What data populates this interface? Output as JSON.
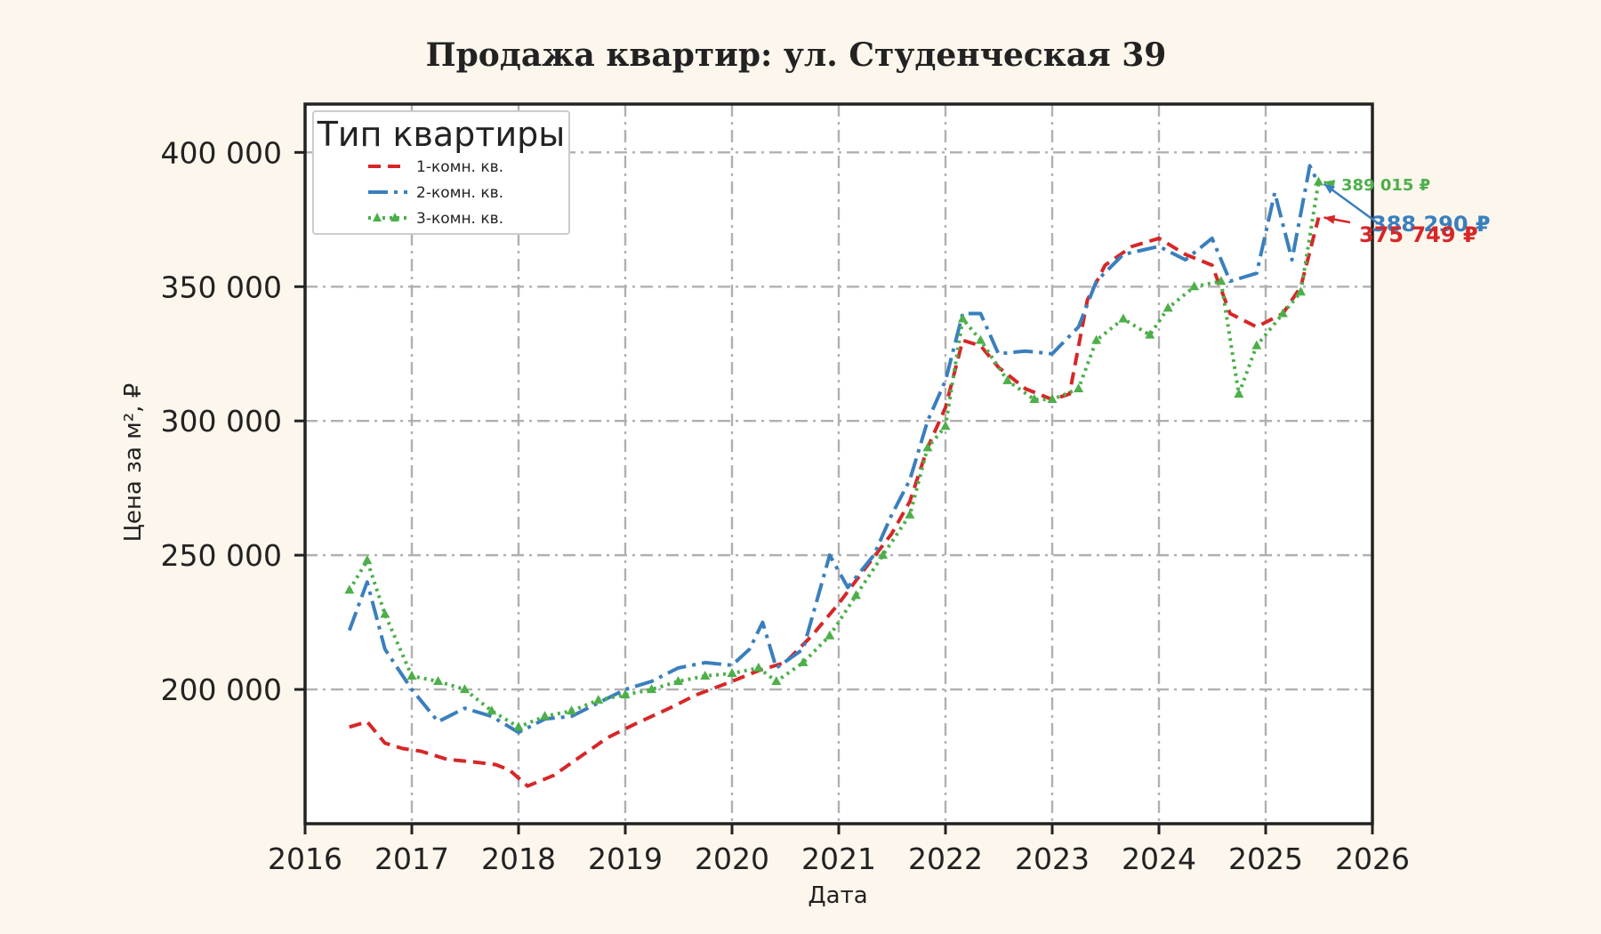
{
  "chart_data": {
    "type": "line",
    "title": "Продажа квартир: ул. Студенческая 39",
    "xlabel": "Дата",
    "ylabel": "Цена за м², ₽",
    "xlim": [
      "2016-01-01",
      "2026-01-01"
    ],
    "ylim": [
      150000,
      418000
    ],
    "x_ticks": [
      "2016",
      "2017",
      "2018",
      "2019",
      "2020",
      "2021",
      "2022",
      "2023",
      "2024",
      "2025",
      "2026"
    ],
    "y_ticks": [
      200000,
      250000,
      300000,
      350000,
      400000
    ],
    "y_tick_labels": [
      "200 000",
      "250 000",
      "300 000",
      "350 000",
      "400 000"
    ],
    "grid": true,
    "legend": {
      "title": "Тип квартиры",
      "placement": "top-left"
    },
    "series": [
      {
        "name": "1-комн. кв.",
        "color": "#d62728",
        "style": "dashed",
        "points": [
          [
            "2016-06-01",
            186000
          ],
          [
            "2016-08-01",
            188000
          ],
          [
            "2016-10-01",
            180000
          ],
          [
            "2016-12-01",
            178000
          ],
          [
            "2017-02-01",
            177000
          ],
          [
            "2017-05-01",
            174000
          ],
          [
            "2017-08-01",
            173000
          ],
          [
            "2017-10-15",
            172000
          ],
          [
            "2017-12-01",
            170000
          ],
          [
            "2018-02-01",
            164000
          ],
          [
            "2018-05-01",
            168000
          ],
          [
            "2018-08-01",
            175000
          ],
          [
            "2018-11-01",
            182000
          ],
          [
            "2019-02-01",
            187000
          ],
          [
            "2019-06-01",
            193000
          ],
          [
            "2019-09-01",
            198000
          ],
          [
            "2020-01-01",
            203000
          ],
          [
            "2020-04-01",
            207000
          ],
          [
            "2020-07-01",
            210000
          ],
          [
            "2020-10-01",
            220000
          ],
          [
            "2021-01-01",
            232000
          ],
          [
            "2021-04-01",
            245000
          ],
          [
            "2021-07-01",
            258000
          ],
          [
            "2021-09-01",
            270000
          ],
          [
            "2021-11-01",
            290000
          ],
          [
            "2022-01-01",
            305000
          ],
          [
            "2022-03-01",
            330000
          ],
          [
            "2022-05-01",
            328000
          ],
          [
            "2022-07-01",
            320000
          ],
          [
            "2022-10-01",
            312000
          ],
          [
            "2023-01-01",
            308000
          ],
          [
            "2023-03-01",
            310000
          ],
          [
            "2023-05-01",
            345000
          ],
          [
            "2023-07-01",
            358000
          ],
          [
            "2023-10-01",
            365000
          ],
          [
            "2024-01-01",
            368000
          ],
          [
            "2024-04-01",
            362000
          ],
          [
            "2024-07-01",
            358000
          ],
          [
            "2024-09-01",
            340000
          ],
          [
            "2024-12-01",
            335000
          ],
          [
            "2025-03-01",
            340000
          ],
          [
            "2025-05-01",
            350000
          ],
          [
            "2025-07-01",
            375749
          ]
        ]
      },
      {
        "name": "2-комн. кв.",
        "color": "#3a7fbd",
        "style": "dashdot",
        "points": [
          [
            "2016-06-01",
            222000
          ],
          [
            "2016-08-01",
            240000
          ],
          [
            "2016-10-01",
            215000
          ],
          [
            "2017-01-01",
            200000
          ],
          [
            "2017-04-01",
            188000
          ],
          [
            "2017-07-01",
            193000
          ],
          [
            "2017-10-01",
            190000
          ],
          [
            "2018-01-01",
            184000
          ],
          [
            "2018-04-01",
            189000
          ],
          [
            "2018-07-01",
            190000
          ],
          [
            "2018-10-01",
            195000
          ],
          [
            "2019-01-01",
            200000
          ],
          [
            "2019-04-01",
            203000
          ],
          [
            "2019-07-01",
            208000
          ],
          [
            "2019-10-01",
            210000
          ],
          [
            "2020-01-01",
            209000
          ],
          [
            "2020-03-01",
            215000
          ],
          [
            "2020-04-15",
            225000
          ],
          [
            "2020-06-01",
            208000
          ],
          [
            "2020-09-01",
            215000
          ],
          [
            "2020-12-01",
            250000
          ],
          [
            "2021-02-01",
            238000
          ],
          [
            "2021-05-01",
            250000
          ],
          [
            "2021-07-01",
            265000
          ],
          [
            "2021-09-01",
            278000
          ],
          [
            "2021-11-01",
            300000
          ],
          [
            "2022-01-01",
            315000
          ],
          [
            "2022-03-01",
            340000
          ],
          [
            "2022-05-01",
            340000
          ],
          [
            "2022-07-01",
            325000
          ],
          [
            "2022-10-01",
            326000
          ],
          [
            "2023-01-01",
            325000
          ],
          [
            "2023-04-01",
            335000
          ],
          [
            "2023-06-01",
            352000
          ],
          [
            "2023-09-01",
            362000
          ],
          [
            "2024-01-01",
            365000
          ],
          [
            "2024-04-01",
            360000
          ],
          [
            "2024-07-01",
            368000
          ],
          [
            "2024-09-01",
            352000
          ],
          [
            "2024-12-01",
            355000
          ],
          [
            "2025-02-01",
            385000
          ],
          [
            "2025-04-01",
            360000
          ],
          [
            "2025-06-01",
            395000
          ],
          [
            "2025-07-01",
            388290
          ]
        ]
      },
      {
        "name": "3-комн. кв.",
        "color": "#4daf4a",
        "style": "dotted",
        "points": [
          [
            "2016-06-01",
            237000
          ],
          [
            "2016-08-01",
            248000
          ],
          [
            "2016-10-01",
            228000
          ],
          [
            "2017-01-01",
            205000
          ],
          [
            "2017-04-01",
            203000
          ],
          [
            "2017-07-01",
            200000
          ],
          [
            "2017-10-01",
            192000
          ],
          [
            "2018-01-01",
            186000
          ],
          [
            "2018-04-01",
            190000
          ],
          [
            "2018-07-01",
            192000
          ],
          [
            "2018-10-01",
            196000
          ],
          [
            "2019-01-01",
            198000
          ],
          [
            "2019-04-01",
            200000
          ],
          [
            "2019-07-01",
            203000
          ],
          [
            "2019-10-01",
            205000
          ],
          [
            "2020-01-01",
            206000
          ],
          [
            "2020-04-01",
            208000
          ],
          [
            "2020-06-01",
            203000
          ],
          [
            "2020-09-01",
            210000
          ],
          [
            "2020-12-01",
            220000
          ],
          [
            "2021-03-01",
            235000
          ],
          [
            "2021-06-01",
            250000
          ],
          [
            "2021-09-01",
            265000
          ],
          [
            "2021-11-01",
            290000
          ],
          [
            "2022-01-01",
            298000
          ],
          [
            "2022-03-01",
            338000
          ],
          [
            "2022-05-01",
            330000
          ],
          [
            "2022-08-01",
            315000
          ],
          [
            "2022-11-01",
            308000
          ],
          [
            "2023-01-01",
            308000
          ],
          [
            "2023-04-01",
            312000
          ],
          [
            "2023-06-01",
            330000
          ],
          [
            "2023-09-01",
            338000
          ],
          [
            "2023-12-01",
            332000
          ],
          [
            "2024-02-01",
            342000
          ],
          [
            "2024-05-01",
            350000
          ],
          [
            "2024-08-01",
            352000
          ],
          [
            "2024-10-01",
            310000
          ],
          [
            "2024-12-01",
            328000
          ],
          [
            "2025-03-01",
            340000
          ],
          [
            "2025-05-01",
            348000
          ],
          [
            "2025-07-01",
            389015
          ]
        ]
      }
    ],
    "annotations": [
      {
        "series": "3-комн. кв.",
        "text": "389 015 ₽",
        "color": "#4daf4a"
      },
      {
        "series": "2-комн. кв.",
        "text": "388 290 ₽",
        "color": "#3a7fbd"
      },
      {
        "series": "1-комн. кв.",
        "text": "375 749 ₽",
        "color": "#d62728"
      }
    ]
  }
}
